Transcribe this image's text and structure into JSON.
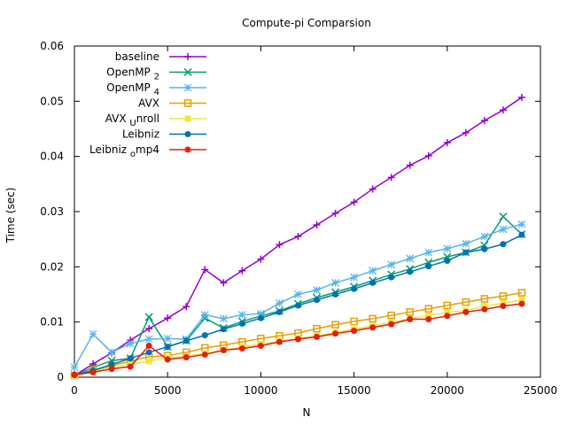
{
  "chart_data": {
    "type": "line",
    "title": "Compute-pi Comparsion",
    "xlabel": "N",
    "ylabel": "Time (sec)",
    "xlim": [
      0,
      25000
    ],
    "ylim": [
      0,
      0.06
    ],
    "xticks": [
      0,
      5000,
      10000,
      15000,
      20000,
      25000
    ],
    "yticks": [
      0,
      0.01,
      0.02,
      0.03,
      0.04,
      0.05,
      0.06
    ],
    "xtick_labels": [
      "0",
      "5000",
      "10000",
      "15000",
      "20000",
      "25000"
    ],
    "ytick_labels": [
      "0",
      "0.01",
      "0.02",
      "0.03",
      "0.04",
      "0.05",
      "0.06"
    ],
    "grid": false,
    "legend_position": "top-left",
    "x": [
      0,
      1000,
      2000,
      3000,
      4000,
      5000,
      6000,
      7000,
      8000,
      9000,
      10000,
      11000,
      12000,
      13000,
      14000,
      15000,
      16000,
      17000,
      18000,
      19000,
      20000,
      21000,
      22000,
      23000,
      24000
    ],
    "series": [
      {
        "name": "baseline",
        "legend_main": "baseline",
        "legend_sub": "",
        "color": "#9400d3",
        "marker": "plus",
        "values": [
          0.0003,
          0.0024,
          0.0044,
          0.0067,
          0.0088,
          0.0107,
          0.0128,
          0.0195,
          0.0171,
          0.0193,
          0.0214,
          0.024,
          0.0255,
          0.0276,
          0.0297,
          0.0317,
          0.0341,
          0.0362,
          0.0384,
          0.0401,
          0.0425,
          0.0443,
          0.0465,
          0.0484,
          0.0507
        ]
      },
      {
        "name": "OpenMP_2",
        "legend_main": "OpenMP",
        "legend_sub": "2",
        "color": "#009e73",
        "marker": "x",
        "values": [
          0.0003,
          0.0018,
          0.003,
          0.0034,
          0.0109,
          0.0055,
          0.0066,
          0.0107,
          0.0089,
          0.0101,
          0.0111,
          0.012,
          0.0133,
          0.0144,
          0.0154,
          0.0164,
          0.0175,
          0.0186,
          0.0196,
          0.0208,
          0.0218,
          0.0226,
          0.0239,
          0.0291,
          0.0259
        ]
      },
      {
        "name": "OpenMP_4",
        "legend_main": "OpenMP",
        "legend_sub": "4",
        "color": "#56b4e9",
        "marker": "star",
        "values": [
          0.0018,
          0.0078,
          0.0045,
          0.0061,
          0.0069,
          0.007,
          0.0069,
          0.0113,
          0.0106,
          0.0113,
          0.0115,
          0.0134,
          0.015,
          0.0158,
          0.0171,
          0.0181,
          0.0193,
          0.0204,
          0.0215,
          0.0226,
          0.0233,
          0.0242,
          0.0255,
          0.0268,
          0.0277
        ]
      },
      {
        "name": "AVX",
        "legend_main": "AVX",
        "legend_sub": "",
        "color": "#e69f00",
        "marker": "square",
        "values": [
          0.0003,
          0.0013,
          0.0021,
          0.0029,
          0.0037,
          0.0039,
          0.0045,
          0.0053,
          0.0058,
          0.0064,
          0.007,
          0.0075,
          0.008,
          0.0088,
          0.0095,
          0.0101,
          0.0106,
          0.0112,
          0.0118,
          0.0124,
          0.013,
          0.0136,
          0.0142,
          0.0147,
          0.0153
        ]
      },
      {
        "name": "AVX_Unroll",
        "legend_main": "AVX",
        "legend_sub": "U",
        "legend_tail": "nroll",
        "color": "#f0e442",
        "marker": "filled-square",
        "values": [
          0.0002,
          0.0011,
          0.0018,
          0.0023,
          0.0029,
          0.0035,
          0.0038,
          0.0043,
          0.0049,
          0.0055,
          0.006,
          0.0065,
          0.007,
          0.0075,
          0.0081,
          0.0087,
          0.0093,
          0.0099,
          0.0106,
          0.0112,
          0.0117,
          0.0121,
          0.0129,
          0.0134,
          0.014
        ]
      },
      {
        "name": "Leibniz",
        "legend_main": "Leibniz",
        "legend_sub": "",
        "color": "#0072b2",
        "marker": "filled-circle",
        "values": [
          0.0004,
          0.0012,
          0.0023,
          0.0034,
          0.0045,
          0.0055,
          0.0066,
          0.0076,
          0.0087,
          0.0097,
          0.0107,
          0.0118,
          0.013,
          0.014,
          0.015,
          0.016,
          0.0171,
          0.0181,
          0.0191,
          0.0201,
          0.0211,
          0.0226,
          0.0232,
          0.0241,
          0.0258
        ]
      },
      {
        "name": "Leibniz_omp4",
        "legend_main": "Leibniz",
        "legend_sub": "o",
        "legend_tail": "mp4",
        "color": "#e51e10",
        "marker": "filled-circle",
        "values": [
          0.0004,
          0.0009,
          0.0015,
          0.0019,
          0.0057,
          0.0032,
          0.0036,
          0.0041,
          0.0049,
          0.0052,
          0.0057,
          0.0064,
          0.0069,
          0.0073,
          0.0079,
          0.0084,
          0.009,
          0.0096,
          0.0105,
          0.0105,
          0.0111,
          0.0118,
          0.0123,
          0.0129,
          0.0133
        ]
      }
    ]
  }
}
